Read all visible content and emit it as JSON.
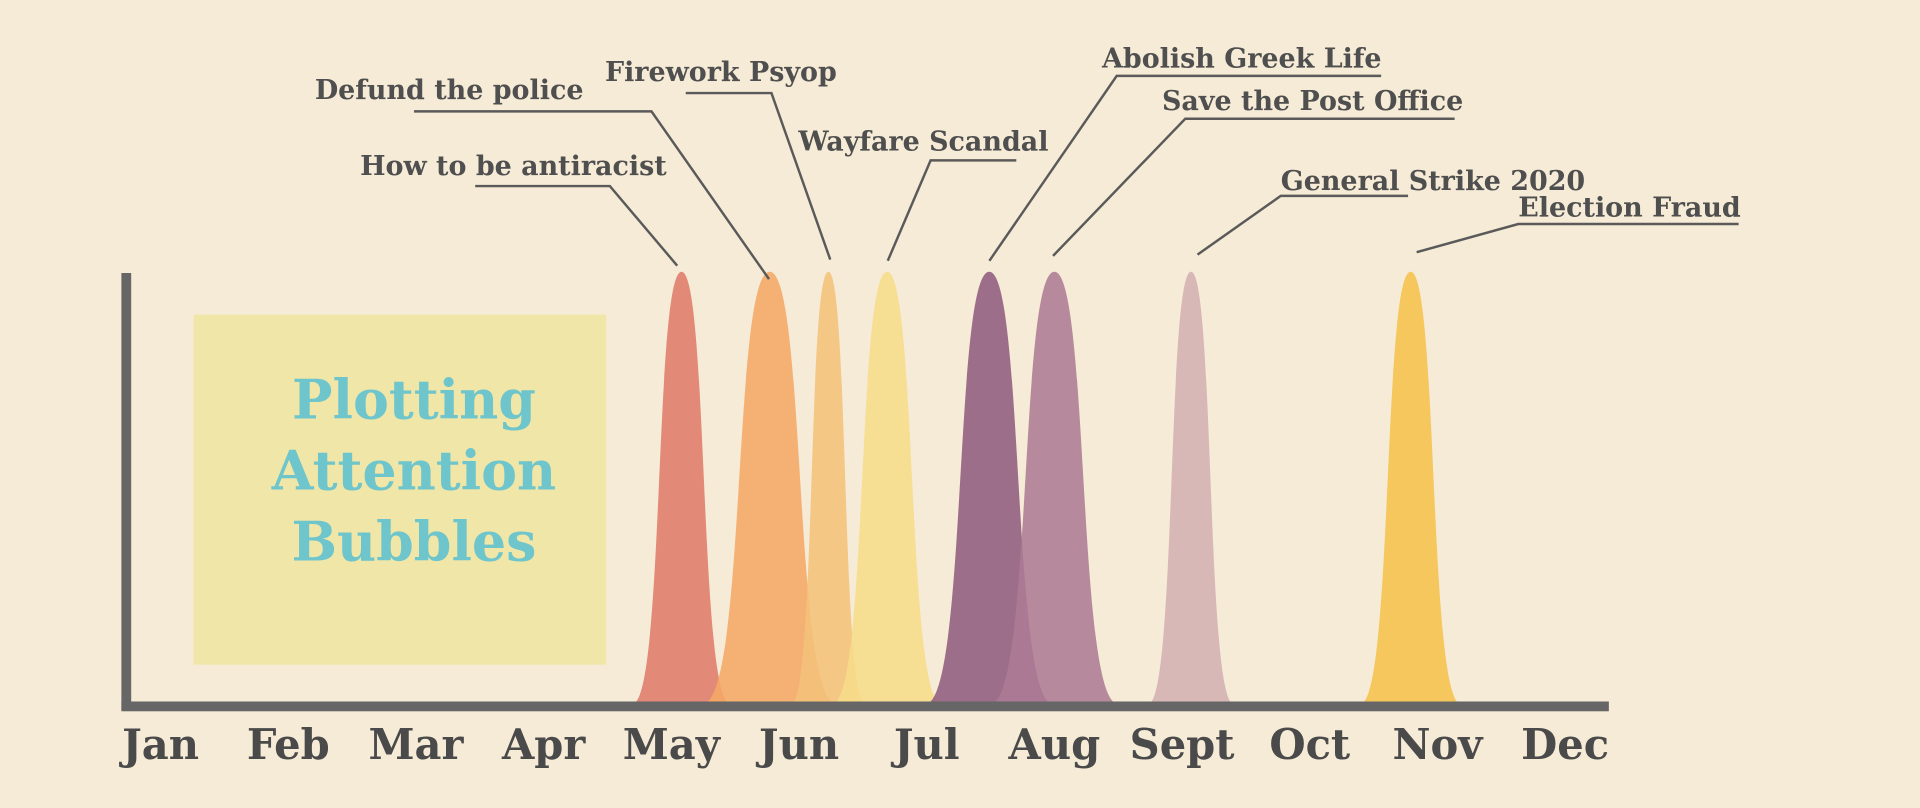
{
  "chart_data": {
    "type": "bubbles",
    "title": "Plotting Attention Bubbles",
    "categories": [
      "Jan",
      "Feb",
      "Mar",
      "Apr",
      "May",
      "Jun",
      "Jul",
      "Aug",
      "Sept",
      "Oct",
      "Nov",
      "Dec"
    ],
    "series": [
      {
        "name": "How to be antiracist",
        "color": "#e07b6a",
        "peak": 4.08,
        "duration": 0.77
      },
      {
        "name": "Defund the police",
        "color": "#f5a967",
        "peak": 4.77,
        "duration": 1.05
      },
      {
        "name": "Firework Psyop",
        "color": "#f4c27a",
        "peak": 5.23,
        "duration": 0.58
      },
      {
        "name": "Wayfare Scandal",
        "color": "#f6dd8a",
        "peak": 5.69,
        "duration": 0.86
      },
      {
        "name": "Abolish Greek Life",
        "color": "#915c80",
        "peak": 6.49,
        "duration": 1.0
      },
      {
        "name": "Save the Post Office",
        "color": "#ad7b95",
        "peak": 7.0,
        "duration": 1.0
      },
      {
        "name": "General Strike 2020",
        "color": "#d4afb3",
        "peak": 8.07,
        "duration": 0.67
      },
      {
        "name": "Election Fraud",
        "color": "#f5c14c",
        "peak": 9.79,
        "duration": 0.79
      }
    ]
  }
}
